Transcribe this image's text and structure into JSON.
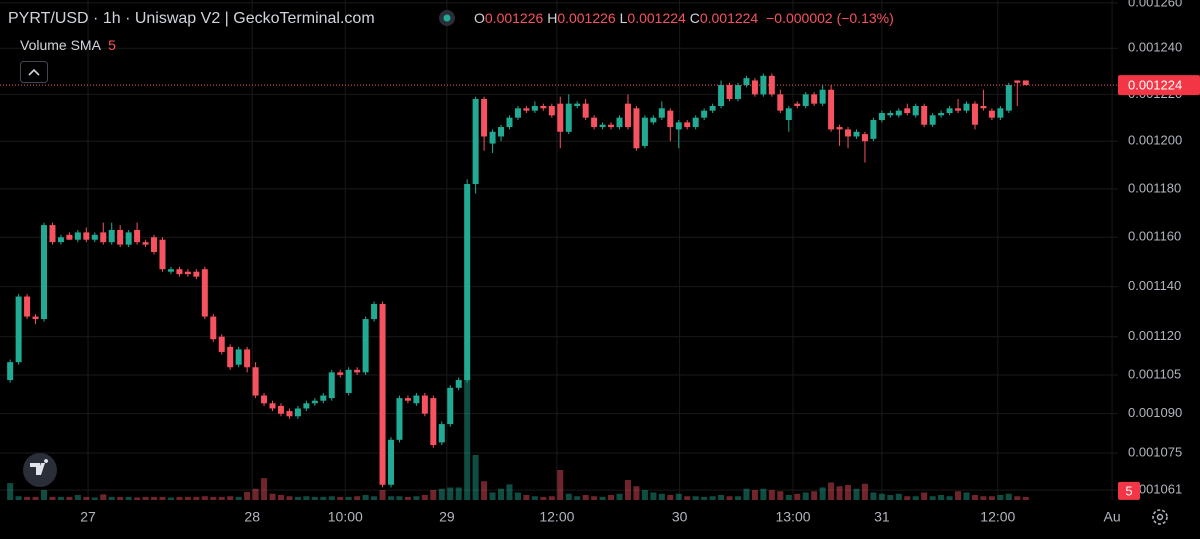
{
  "chart_data": {
    "type": "candlestick",
    "title": "PYRT/USD · 1h · Uniswap V2 | GeckoTerminal.com",
    "ohlc_labels": [
      "O",
      "H",
      "L",
      "C"
    ],
    "change": "−0.000002 (−0.13%)",
    "volume_name": "Volume",
    "volume_indicator": "SMA",
    "volume_indicator_length": 5,
    "up_color": "#22ab94",
    "down_color": "#f7525f",
    "log_scale": true,
    "grid": true,
    "xlim": [
      -1.2,
      130.9
    ],
    "ylim": [
      0.0010573,
      0.0012613
    ],
    "yticks": [
      {
        "value": 0.00126,
        "label": "0.001260"
      },
      {
        "value": 0.00124,
        "label": "0.001240"
      },
      {
        "value": 0.00122,
        "label": "0.001220"
      },
      {
        "value": 0.0012,
        "label": "0.001200"
      },
      {
        "value": 0.00118,
        "label": "0.001180"
      },
      {
        "value": 0.00116,
        "label": "0.001160"
      },
      {
        "value": 0.00114,
        "label": "0.001140"
      },
      {
        "value": 0.00112,
        "label": "0.001120"
      },
      0.001105,
      {
        "value": 0.00109,
        "label": "0.001090"
      },
      0.001075,
      0.001061
    ],
    "xticks": [
      {
        "value": 9.2,
        "label": "27"
      },
      {
        "value": 28.6,
        "label": "28"
      },
      {
        "value": 39.6,
        "label": "10:00"
      },
      {
        "value": 51.6,
        "label": "29"
      },
      {
        "value": 64.6,
        "label": "12:00"
      },
      {
        "value": 79.1,
        "label": "30"
      },
      {
        "value": 92.5,
        "label": "13:00"
      },
      {
        "value": 103,
        "label": "31"
      },
      {
        "value": 116.7,
        "label": "12:00"
      },
      {
        "value": 130.2,
        "label": "Au"
      }
    ],
    "open": [
      0.001103,
      0.00111,
      0.001136,
      0.001128,
      0.001127,
      0.001165,
      0.001158,
      0.001161,
      0.001159,
      0.001162,
      0.001159,
      0.001162,
      0.001158,
      0.001163,
      0.001157,
      0.001163,
      0.001158,
      0.00116,
      0.001159,
      0.001146,
      0.001147,
      0.001146,
      0.001146,
      0.001147,
      0.001128,
      0.00112,
      0.001116,
      0.001109,
      0.001115,
      0.001108,
      0.001097,
      0.001094,
      0.001093,
      0.001091,
      0.001089,
      0.001092,
      0.001094,
      0.001095,
      0.001096,
      0.001106,
      0.001098,
      0.001107,
      0.001106,
      0.001127,
      0.001133,
      0.001063,
      0.00108,
      0.001096,
      0.001094,
      0.001097,
      0.001096,
      0.001079,
      0.001086,
      0.0011,
      0.001103,
      0.001182,
      0.001218,
      0.001199,
      0.001202,
      0.001206,
      0.00121,
      0.001214,
      0.001213,
      0.001215,
      0.001215,
      0.001216,
      0.001204,
      0.001215,
      0.001216,
      0.00121,
      0.001206,
      0.001207,
      0.001206,
      0.001216,
      0.001214,
      0.001198,
      0.001208,
      0.00121,
      0.001213,
      0.001205,
      0.001208,
      0.001206,
      0.00121,
      0.001213,
      0.001215,
      0.001224,
      0.001218,
      0.001224,
      0.001226,
      0.00122,
      0.001228,
      0.00122,
      0.001209,
      0.001216,
      0.001215,
      0.00122,
      0.001216,
      0.001222,
      0.001206,
      0.001205,
      0.001202,
      0.001203,
      0.001201,
      0.001209,
      0.001211,
      0.001211,
      0.001214,
      0.001211,
      0.001215,
      0.001207,
      0.001211,
      0.001212,
      0.001214,
      0.001213,
      0.001216,
      0.001215,
      0.001213,
      0.00121,
      0.001213,
      0.001226,
      0.001226
    ],
    "high": [
      0.001111,
      0.001137,
      0.001137,
      0.001129,
      0.001166,
      0.001166,
      0.001161,
      0.001162,
      0.001163,
      0.001164,
      0.001162,
      0.001166,
      0.001166,
      0.001165,
      0.001163,
      0.001166,
      0.001159,
      0.001161,
      0.00116,
      0.001148,
      0.001148,
      0.001147,
      0.001147,
      0.001148,
      0.001129,
      0.001121,
      0.001117,
      0.001116,
      0.001116,
      0.00111,
      0.001098,
      0.001095,
      0.001094,
      0.001092,
      0.001093,
      0.001095,
      0.001096,
      0.001098,
      0.001107,
      0.001107,
      0.001108,
      0.001108,
      0.001128,
      0.001134,
      0.001134,
      0.001081,
      0.001097,
      0.001097,
      0.001098,
      0.001098,
      0.001097,
      0.001087,
      0.001101,
      0.001104,
      0.001184,
      0.001219,
      0.001219,
      0.001205,
      0.001207,
      0.001211,
      0.001215,
      0.001215,
      0.001217,
      0.001216,
      0.001216,
      0.001219,
      0.00122,
      0.001217,
      0.001218,
      0.001211,
      0.001208,
      0.001208,
      0.001211,
      0.00122,
      0.001215,
      0.001211,
      0.001211,
      0.001217,
      0.001214,
      0.001209,
      0.001209,
      0.001211,
      0.001214,
      0.001216,
      0.001226,
      0.001225,
      0.001225,
      0.001228,
      0.001227,
      0.001229,
      0.001229,
      0.001222,
      0.001215,
      0.001217,
      0.001221,
      0.001221,
      0.001224,
      0.001224,
      0.001207,
      0.001206,
      0.001205,
      0.001204,
      0.00121,
      0.001213,
      0.001213,
      0.001214,
      0.001216,
      0.001216,
      0.001216,
      0.001212,
      0.001213,
      0.001215,
      0.001218,
      0.001217,
      0.001217,
      0.001222,
      0.001214,
      0.001215,
      0.001225,
      0.001226,
      0.001226
    ],
    "low": [
      0.001102,
      0.001109,
      0.001127,
      0.001125,
      0.001126,
      0.001157,
      0.001157,
      0.001159,
      0.001158,
      0.001158,
      0.001158,
      0.001157,
      0.001157,
      0.001156,
      0.001156,
      0.001157,
      0.001156,
      0.001153,
      0.001146,
      0.001145,
      0.001144,
      0.001144,
      0.001143,
      0.001127,
      0.001118,
      0.001113,
      0.001107,
      0.001108,
      0.001106,
      0.001096,
      0.001093,
      0.001091,
      0.001089,
      0.001088,
      0.001088,
      0.001091,
      0.001093,
      0.001094,
      0.001095,
      0.001104,
      0.001097,
      0.001105,
      0.001105,
      0.001126,
      0.001062,
      0.001062,
      0.001079,
      0.001094,
      0.001093,
      0.001089,
      0.001077,
      0.001078,
      0.001085,
      0.001099,
      0.001102,
      0.001178,
      0.001196,
      0.001195,
      0.0012,
      0.001205,
      0.001209,
      0.001212,
      0.001212,
      0.001213,
      0.00121,
      0.001197,
      0.001203,
      0.001214,
      0.001209,
      0.001205,
      0.001205,
      0.001205,
      0.001205,
      0.001205,
      0.001196,
      0.001197,
      0.001207,
      0.001209,
      0.0012,
      0.001197,
      0.001205,
      0.001205,
      0.001209,
      0.001212,
      0.001214,
      0.001217,
      0.001217,
      0.001223,
      0.001219,
      0.001219,
      0.001219,
      0.001212,
      0.001204,
      0.001214,
      0.001214,
      0.001215,
      0.001215,
      0.001204,
      0.001198,
      0.001197,
      0.001201,
      0.001191,
      0.0012,
      0.001208,
      0.00121,
      0.00121,
      0.001211,
      0.00121,
      0.001206,
      0.001206,
      0.00121,
      0.001211,
      0.001212,
      0.001212,
      0.001205,
      0.001213,
      0.001209,
      0.001209,
      0.001212,
      0.001215,
      0.001224
    ],
    "close": [
      0.00111,
      0.001136,
      0.001128,
      0.001127,
      0.001165,
      0.001158,
      0.00116,
      0.001159,
      0.001162,
      0.001159,
      0.001161,
      0.001158,
      0.001163,
      0.001157,
      0.001162,
      0.001158,
      0.001157,
      0.001154,
      0.001147,
      0.001147,
      0.001145,
      0.001145,
      0.001144,
      0.001128,
      0.001119,
      0.001114,
      0.001108,
      0.001115,
      0.001108,
      0.001097,
      0.001094,
      0.001092,
      0.00109,
      0.001089,
      0.001092,
      0.001094,
      0.001095,
      0.001097,
      0.001106,
      0.001105,
      0.001107,
      0.001106,
      0.001127,
      0.001133,
      0.001063,
      0.00108,
      0.001096,
      0.001095,
      0.001097,
      0.00109,
      0.001078,
      0.001086,
      0.0011,
      0.001103,
      0.001182,
      0.001218,
      0.001202,
      0.001204,
      0.001206,
      0.00121,
      0.001214,
      0.001213,
      0.001215,
      0.001214,
      0.001211,
      0.001204,
      0.001216,
      0.001216,
      0.00121,
      0.001206,
      0.001207,
      0.001206,
      0.00121,
      0.001206,
      0.001197,
      0.00121,
      0.00121,
      0.001214,
      0.001206,
      0.001208,
      0.001206,
      0.00121,
      0.001213,
      0.001215,
      0.001224,
      0.001218,
      0.001224,
      0.001227,
      0.00122,
      0.001228,
      0.00122,
      0.001213,
      0.001214,
      0.001215,
      0.00122,
      0.001216,
      0.001222,
      0.001205,
      0.001205,
      0.001202,
      0.001204,
      0.0012,
      0.001209,
      0.001212,
      0.001212,
      0.001213,
      0.001212,
      0.001215,
      0.001207,
      0.001211,
      0.001212,
      0.001214,
      0.001213,
      0.001216,
      0.001207,
      0.001214,
      0.00121,
      0.001214,
      0.001224,
      0.001225,
      0.001224
    ],
    "volume": [
      27,
      6,
      5,
      5,
      16,
      5,
      5,
      5,
      8,
      5,
      4,
      9,
      5,
      5,
      5,
      4,
      5,
      5,
      5,
      4,
      5,
      5,
      5,
      6,
      5,
      5,
      6,
      5,
      13,
      18,
      35,
      10,
      8,
      6,
      5,
      6,
      5,
      5,
      6,
      5,
      5,
      6,
      8,
      6,
      16,
      6,
      6,
      5,
      6,
      8,
      16,
      18,
      20,
      20,
      200,
      72,
      30,
      12,
      18,
      25,
      12,
      8,
      6,
      5,
      6,
      48,
      10,
      6,
      8,
      6,
      5,
      8,
      10,
      32,
      22,
      16,
      12,
      10,
      8,
      10,
      6,
      6,
      5,
      6,
      8,
      6,
      6,
      18,
      16,
      18,
      16,
      14,
      8,
      10,
      12,
      14,
      20,
      28,
      22,
      24,
      18,
      26,
      12,
      10,
      8,
      10,
      6,
      6,
      12,
      6,
      8,
      6,
      14,
      12,
      8,
      6,
      6,
      8,
      10,
      6,
      5
    ]
  }
}
